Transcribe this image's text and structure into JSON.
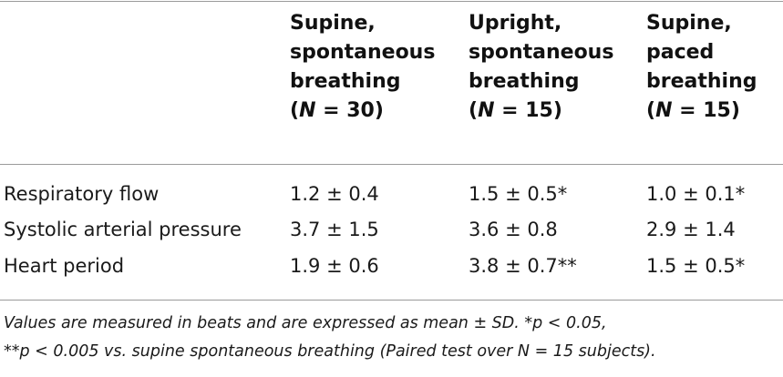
{
  "table": {
    "columns": [
      {
        "line1": "Supine,",
        "line2": "spontaneous",
        "line3": "breathing",
        "n_open": "(",
        "n_label": "N",
        "n_value": " = 30)"
      },
      {
        "line1": "Upright,",
        "line2": "spontaneous",
        "line3": "breathing",
        "n_open": "(",
        "n_label": "N",
        "n_value": " = 15)"
      },
      {
        "line1": "Supine,",
        "line2": "paced",
        "line3": "breathing",
        "n_open": "(",
        "n_label": "N",
        "n_value": " = 15)"
      }
    ],
    "rows": [
      {
        "label": "Respiratory flow",
        "values": [
          "1.2 ± 0.4",
          "1.5 ± 0.5*",
          "1.0 ± 0.1*"
        ]
      },
      {
        "label": "Systolic arterial pressure",
        "values": [
          "3.7 ± 1.5",
          "3.6 ± 0.8",
          "2.9 ± 1.4"
        ]
      },
      {
        "label": "Heart period",
        "values": [
          "1.9 ± 0.6",
          "3.8 ± 0.7**",
          "1.5 ± 0.5*"
        ]
      }
    ]
  },
  "footnote": {
    "line1": "Values are measured in beats and are expressed as mean ± SD. *p < 0.05,",
    "line2": "**p < 0.005 vs. supine spontaneous breathing (Paired test over N = 15 subjects)."
  }
}
